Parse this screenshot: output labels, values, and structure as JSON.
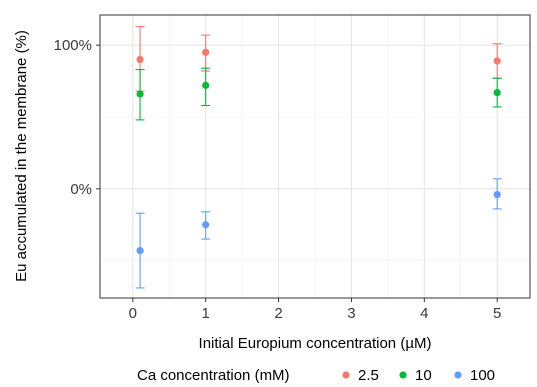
{
  "chart_data": {
    "type": "scatter",
    "xlabel": "Initial Europium concentration (µM)",
    "ylabel": "Eu accumulated in the membrane (%)",
    "xlim": [
      -0.45,
      5.45
    ],
    "ylim": [
      -76,
      121
    ],
    "x_ticks": [
      0,
      1,
      2,
      3,
      4,
      5
    ],
    "y_ticks": [
      0,
      100
    ],
    "y_tick_labels": [
      "0%",
      "100%"
    ],
    "grid": true,
    "legend": {
      "title": "Ca concentration (mM)",
      "position": "bottom"
    },
    "series": [
      {
        "name": "2.5",
        "color": "#F8766D",
        "points": [
          {
            "x": 0.1,
            "y": 90,
            "ymin": 68,
            "ymax": 113
          },
          {
            "x": 1,
            "y": 95,
            "ymin": 82,
            "ymax": 107
          },
          {
            "x": 5,
            "y": 89,
            "ymin": 77,
            "ymax": 101
          }
        ]
      },
      {
        "name": "10",
        "color": "#00BA38",
        "points": [
          {
            "x": 0.1,
            "y": 66,
            "ymin": 48,
            "ymax": 83
          },
          {
            "x": 1,
            "y": 72,
            "ymin": 58,
            "ymax": 84
          },
          {
            "x": 5,
            "y": 67,
            "ymin": 57,
            "ymax": 77
          }
        ]
      },
      {
        "name": "100",
        "color": "#619CFF",
        "points": [
          {
            "x": 0.1,
            "y": -43,
            "ymin": -69,
            "ymax": -17
          },
          {
            "x": 1,
            "y": -25,
            "ymin": -35,
            "ymax": -16
          },
          {
            "x": 5,
            "y": -4,
            "ymin": -14,
            "ymax": 7
          }
        ]
      }
    ]
  }
}
